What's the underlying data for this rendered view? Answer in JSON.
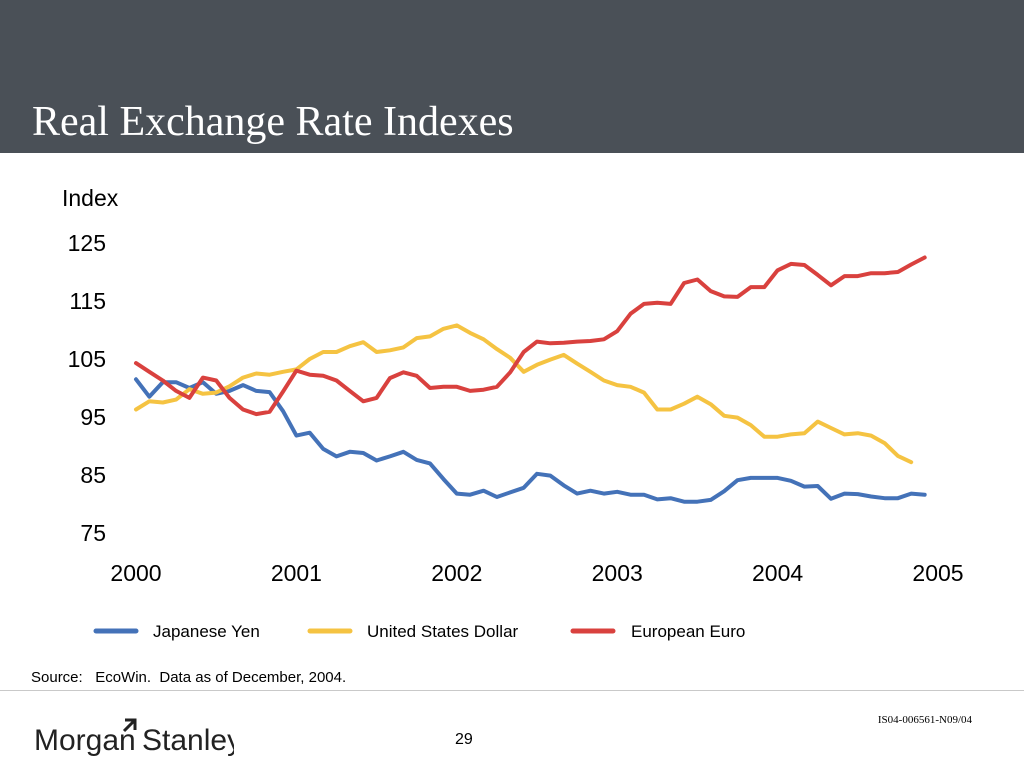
{
  "slide": {
    "title": "Real Exchange Rate Indexes",
    "source": "Source:   EcoWin.  Data as of December, 2004.",
    "page_number": "29",
    "doc_id": "IS04-006561-N09/04",
    "brand": "Morgan Stanley"
  },
  "chart_data": {
    "type": "line",
    "ylabel": "Index",
    "ylim": [
      75,
      125
    ],
    "yticks": [
      125,
      115,
      105,
      95,
      85,
      75
    ],
    "xlim": [
      2000,
      2005
    ],
    "xticks": [
      "2000",
      "2001",
      "2002",
      "2003",
      "2004",
      "2005"
    ],
    "x_values": [
      2000,
      2001,
      2002,
      2003,
      2004,
      2005
    ],
    "grid": false,
    "legend_position": "bottom",
    "series": [
      {
        "name": "Japanese Yen",
        "color": "#4472b8",
        "x": [
          2000.0,
          2000.083,
          2000.167,
          2000.25,
          2000.333,
          2000.417,
          2000.5,
          2000.583,
          2000.667,
          2000.75,
          2000.833,
          2000.917,
          2001.0,
          2001.083,
          2001.167,
          2001.25,
          2001.333,
          2001.417,
          2001.5,
          2001.583,
          2001.667,
          2001.75,
          2001.833,
          2001.917,
          2002.0,
          2002.083,
          2002.167,
          2002.25,
          2002.333,
          2002.417,
          2002.5,
          2002.583,
          2002.667,
          2002.75,
          2002.833,
          2002.917,
          2003.0,
          2003.083,
          2003.167,
          2003.25,
          2003.333,
          2003.417,
          2003.5,
          2003.583,
          2003.667,
          2003.75,
          2003.833,
          2003.917,
          2004.0,
          2004.083,
          2004.167,
          2004.25,
          2004.333,
          2004.417,
          2004.5,
          2004.583,
          2004.667,
          2004.75,
          2004.833,
          2004.917
        ],
        "y": [
          101.5,
          98.5,
          101.0,
          101.0,
          100.0,
          101.0,
          99.0,
          99.5,
          100.5,
          99.5,
          99.3,
          96.0,
          91.8,
          92.3,
          89.5,
          88.2,
          89.0,
          88.8,
          87.5,
          88.2,
          89.0,
          87.6,
          87.0,
          84.3,
          81.8,
          81.6,
          82.3,
          81.2,
          82.0,
          82.8,
          85.2,
          84.9,
          83.2,
          81.8,
          82.3,
          81.8,
          82.1,
          81.6,
          81.6,
          80.8,
          81.0,
          80.4,
          80.4,
          80.7,
          82.2,
          84.1,
          84.5,
          84.5,
          84.5,
          84.0,
          83.0,
          83.1,
          80.9,
          81.8,
          81.7,
          81.3,
          81.0,
          81.0,
          81.8,
          81.6
        ]
      },
      {
        "name": "United States Dollar",
        "color": "#f5c342",
        "x": [
          2000.0,
          2000.083,
          2000.167,
          2000.25,
          2000.333,
          2000.417,
          2000.5,
          2000.583,
          2000.667,
          2000.75,
          2000.833,
          2000.917,
          2001.0,
          2001.083,
          2001.167,
          2001.25,
          2001.333,
          2001.417,
          2001.5,
          2001.583,
          2001.667,
          2001.75,
          2001.833,
          2001.917,
          2002.0,
          2002.083,
          2002.167,
          2002.25,
          2002.333,
          2002.417,
          2002.5,
          2002.583,
          2002.667,
          2002.75,
          2002.833,
          2002.917,
          2003.0,
          2003.083,
          2003.167,
          2003.25,
          2003.333,
          2003.417,
          2003.5,
          2003.583,
          2003.667,
          2003.75,
          2003.833,
          2003.917,
          2004.0,
          2004.083,
          2004.167,
          2004.25,
          2004.333,
          2004.417,
          2004.5,
          2004.583,
          2004.667,
          2004.75,
          2004.833,
          2004.917
        ],
        "y": [
          96.3,
          97.7,
          97.5,
          98.0,
          99.8,
          99.0,
          99.2,
          100.3,
          101.8,
          102.5,
          102.3,
          102.8,
          103.2,
          105.0,
          106.2,
          106.2,
          107.2,
          107.9,
          106.2,
          106.5,
          107.0,
          108.6,
          108.9,
          110.2,
          110.8,
          109.5,
          108.4,
          106.7,
          105.2,
          102.8,
          104.0,
          104.9,
          105.7,
          104.2,
          102.8,
          101.3,
          100.5,
          100.2,
          99.2,
          96.3,
          96.3,
          97.3,
          98.5,
          97.2,
          95.2,
          94.9,
          93.6,
          91.6,
          91.6,
          92.0,
          92.2,
          94.2,
          93.1,
          92.0,
          92.2,
          91.8,
          90.5,
          88.3,
          87.2,
          null
        ]
      },
      {
        "name": "European Euro",
        "color": "#d9413e",
        "x": [
          2000.0,
          2000.083,
          2000.167,
          2000.25,
          2000.333,
          2000.417,
          2000.5,
          2000.583,
          2000.667,
          2000.75,
          2000.833,
          2000.917,
          2001.0,
          2001.083,
          2001.167,
          2001.25,
          2001.333,
          2001.417,
          2001.5,
          2001.583,
          2001.667,
          2001.75,
          2001.833,
          2001.917,
          2002.0,
          2002.083,
          2002.167,
          2002.25,
          2002.333,
          2002.417,
          2002.5,
          2002.583,
          2002.667,
          2002.75,
          2002.833,
          2002.917,
          2003.0,
          2003.083,
          2003.167,
          2003.25,
          2003.333,
          2003.417,
          2003.5,
          2003.583,
          2003.667,
          2003.75,
          2003.833,
          2003.917,
          2004.0,
          2004.083,
          2004.167,
          2004.25,
          2004.333,
          2004.417,
          2004.5,
          2004.583,
          2004.667,
          2004.75,
          2004.833,
          2004.917
        ],
        "y": [
          104.3,
          102.8,
          101.3,
          99.5,
          98.3,
          101.8,
          101.3,
          98.3,
          96.3,
          95.5,
          95.9,
          99.4,
          103.0,
          102.3,
          102.1,
          101.3,
          99.5,
          97.7,
          98.3,
          101.7,
          102.7,
          102.1,
          100.0,
          100.2,
          100.2,
          99.5,
          99.7,
          100.2,
          102.7,
          106.2,
          108.0,
          107.7,
          107.8,
          108.0,
          108.1,
          108.4,
          109.8,
          112.8,
          114.5,
          114.7,
          114.5,
          118.1,
          118.7,
          116.7,
          115.8,
          115.7,
          117.4,
          117.4,
          120.3,
          121.4,
          121.2,
          119.5,
          117.7,
          119.3,
          119.3,
          119.8,
          119.8,
          120.0,
          121.3,
          122.5
        ]
      }
    ]
  }
}
